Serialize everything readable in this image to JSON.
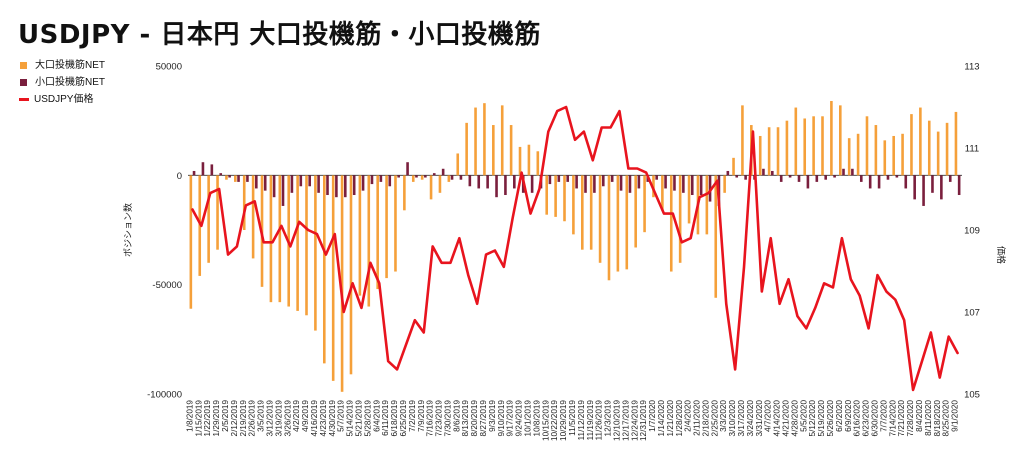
{
  "title": "USDJPY - 日本円 大口投機筋・小口投機筋",
  "legend": [
    {
      "label": "大口投機筋NET",
      "color": "#f5a03a",
      "kind": "bar"
    },
    {
      "label": "小口投機筋NET",
      "color": "#7a1f3d",
      "kind": "bar"
    },
    {
      "label": "USDJPY価格",
      "color": "#e8141e",
      "kind": "line"
    }
  ],
  "chart_data": {
    "type": "bar",
    "ylabel": "ポジション数",
    "y2label": "価格",
    "ylim": [
      -100000,
      50000
    ],
    "yticks": [
      50000,
      0,
      -50000,
      -100000
    ],
    "y2lim": [
      105,
      113
    ],
    "y2ticks": [
      113,
      111,
      109,
      107,
      105
    ],
    "categories": [
      "1/8/2019",
      "1/15/2019",
      "1/22/2019",
      "1/29/2019",
      "2/5/2019",
      "2/12/2019",
      "2/19/2019",
      "2/26/2019",
      "3/5/2019",
      "3/12/2019",
      "3/19/2019",
      "3/26/2019",
      "4/2/2019",
      "4/9/2019",
      "4/16/2019",
      "4/23/2019",
      "4/30/2019",
      "5/7/2019",
      "5/14/2019",
      "5/21/2019",
      "5/28/2019",
      "6/4/2019",
      "6/11/2019",
      "6/18/2019",
      "6/25/2019",
      "7/2/2019",
      "7/9/2019",
      "7/16/2019",
      "7/23/2019",
      "7/30/2019",
      "8/6/2019",
      "8/13/2019",
      "8/20/2019",
      "8/27/2019",
      "9/3/2019",
      "9/10/2019",
      "9/17/2019",
      "9/24/2019",
      "10/1/2019",
      "10/8/2019",
      "10/15/2019",
      "10/22/2019",
      "10/29/2019",
      "11/5/2019",
      "11/12/2019",
      "11/19/2019",
      "11/26/2019",
      "12/3/2019",
      "12/10/2019",
      "12/17/2019",
      "12/24/2019",
      "12/31/2019",
      "1/7/2020",
      "1/14/2020",
      "1/21/2020",
      "1/28/2020",
      "2/4/2020",
      "2/11/2020",
      "2/18/2020",
      "2/25/2020",
      "3/3/2020",
      "3/10/2020",
      "3/17/2020",
      "3/24/2020",
      "3/31/2020",
      "4/7/2020",
      "4/14/2020",
      "4/21/2020",
      "4/28/2020",
      "5/5/2020",
      "5/12/2020",
      "5/19/2020",
      "5/26/2020",
      "6/2/2020",
      "6/9/2020",
      "6/16/2020",
      "6/23/2020",
      "6/30/2020",
      "7/7/2020",
      "7/14/2020",
      "7/21/2020",
      "7/28/2020",
      "8/4/2020",
      "8/11/2020",
      "8/18/2020",
      "8/25/2020",
      "9/1/2020"
    ],
    "tick_labels": [
      "1/8/2019",
      "1/15/2019",
      "1/22/2019",
      "1/29/2019",
      "2/5/2019",
      "2/12/2019",
      "2/19/2019",
      "2/26/2019",
      "3/5/2019",
      "3/12/2019",
      "3/19/2019",
      "3/26/2019",
      "4/2/2019",
      "4/9/2019",
      "4/16/2019",
      "4/23/2019",
      "4/30/2019",
      "5/7/2019",
      "5/14/2019",
      "5/21/2019",
      "5/28/2019",
      "6/4/2019",
      "6/11/2019",
      "6/18/2019",
      "6/25/2019",
      "7/2/2019",
      "7/9/2019",
      "7/16/2019",
      "7/23/2019",
      "7/30/2019",
      "8/6/2019",
      "8/13/2019",
      "8/20/2019",
      "8/27/2019",
      "9/3/2019",
      "9/10/2019",
      "9/17/2019",
      "9/24/2019",
      "10/1/2019",
      "10/8/2019",
      "10/15/2019",
      "10/22/2019",
      "10/29/2019",
      "11/5/2019",
      "11/12/2019",
      "11/19/2019",
      "11/26/2019",
      "12/3/2019",
      "12/10/2019",
      "12/17/2019",
      "12/24/2019",
      "12/31/2019",
      "1/7/2020",
      "1/14/2020",
      "1/21/2020",
      "1/28/2020",
      "2/4/2020",
      "2/11/2020",
      "2/18/2020",
      "2/25/2020",
      "3/3/2020",
      "3/10/2020",
      "3/17/2020",
      "3/24/2020",
      "3/31/2020",
      "4/7/2020",
      "4/14/2020",
      "4/21/2020",
      "4/28/2020",
      "5/5/2020",
      "5/12/2020",
      "5/19/2020",
      "5/26/2020",
      "6/2/2020",
      "6/9/2020",
      "6/16/2020",
      "6/23/2020",
      "6/30/2020",
      "7/7/2020",
      "7/14/2020",
      "7/21/2020",
      "7/28/2020",
      "8/4/2020",
      "8/11/2020",
      "8/18/2020",
      "8/25/2020",
      "9/1/2020"
    ],
    "series": [
      {
        "name": "大口投機筋NET",
        "axis": "left",
        "values": [
          -61000,
          -46000,
          -40000,
          -34000,
          -2000,
          -3000,
          -25000,
          -38000,
          -51000,
          -58000,
          -58000,
          -60000,
          -62000,
          -64000,
          -71000,
          -86000,
          -94000,
          -99000,
          -91000,
          -55000,
          -60000,
          -52000,
          -47000,
          -44000,
          -16000,
          -3000,
          -2000,
          -11000,
          -8000,
          -3000,
          10000,
          24000,
          31000,
          33000,
          23000,
          32000,
          23000,
          13000,
          14000,
          11000,
          -18000,
          -19000,
          -21000,
          -27000,
          -34000,
          -34000,
          -40000,
          -48000,
          -44000,
          -43000,
          -33000,
          -26000,
          -10000,
          -16000,
          -44000,
          -40000,
          -22000,
          -27000,
          -27000,
          -56000,
          -8000,
          8000,
          32000,
          23000,
          18000,
          22000,
          22000,
          25000,
          31000,
          26000,
          27000,
          27000,
          34000,
          32000,
          17000,
          19000,
          27000,
          23000,
          16000,
          18000,
          19000,
          28000,
          31000,
          25000,
          20000,
          24000,
          29000
        ]
      },
      {
        "name": "小口投機筋NET",
        "axis": "left",
        "values": [
          2000,
          6000,
          5000,
          1000,
          -1000,
          -3000,
          -3000,
          -6000,
          -7000,
          -10000,
          -14000,
          -8000,
          -5000,
          -5000,
          -8000,
          -9000,
          -10000,
          -10000,
          -9000,
          -7000,
          -4000,
          -3000,
          -5000,
          -1000,
          6000,
          -1000,
          -1000,
          1000,
          3000,
          -2000,
          -2000,
          -5000,
          -6000,
          -6000,
          -10000,
          -9000,
          -6000,
          -8000,
          -8000,
          -6000,
          -4000,
          -3000,
          -3000,
          -6000,
          -8000,
          -8000,
          -5000,
          -3000,
          -7000,
          -8000,
          -6000,
          -3000,
          -2000,
          -6000,
          -7000,
          -8000,
          -9000,
          -9000,
          -12000,
          -14000,
          2000,
          -1000,
          -2000,
          -2000,
          3000,
          2000,
          -3000,
          -1000,
          -3000,
          -6000,
          -3000,
          -2000,
          -1000,
          3000,
          3000,
          -3000,
          -6000,
          -6000,
          -2000,
          -1000,
          -6000,
          -11000,
          -14000,
          -8000,
          -11000,
          -3000,
          -9000
        ]
      },
      {
        "name": "USDJPY価格",
        "axis": "right",
        "values": [
          109.5,
          109.1,
          109.9,
          110.0,
          108.4,
          108.6,
          109.6,
          109.7,
          108.7,
          108.7,
          109.1,
          108.6,
          109.2,
          109.0,
          108.9,
          108.4,
          108.9,
          107.0,
          107.7,
          107.1,
          108.2,
          107.7,
          105.8,
          105.6,
          106.2,
          106.8,
          106.5,
          108.6,
          108.2,
          108.2,
          108.8,
          107.9,
          107.2,
          108.4,
          108.5,
          108.1,
          109.3,
          110.4,
          109.4,
          110.0,
          111.4,
          111.9,
          112.0,
          111.2,
          111.4,
          110.7,
          111.5,
          111.5,
          111.9,
          110.5,
          110.5,
          110.4,
          109.9,
          109.4,
          109.4,
          108.7,
          108.8,
          109.8,
          109.9,
          110.2,
          107.2,
          105.6,
          108.1,
          111.4,
          107.5,
          108.8,
          107.2,
          107.8,
          106.9,
          106.6,
          107.1,
          107.7,
          107.6,
          108.8,
          107.8,
          107.4,
          106.6,
          107.9,
          107.5,
          107.3,
          106.8,
          105.1,
          105.8,
          106.5,
          105.4,
          106.4,
          106.0
        ]
      }
    ]
  }
}
